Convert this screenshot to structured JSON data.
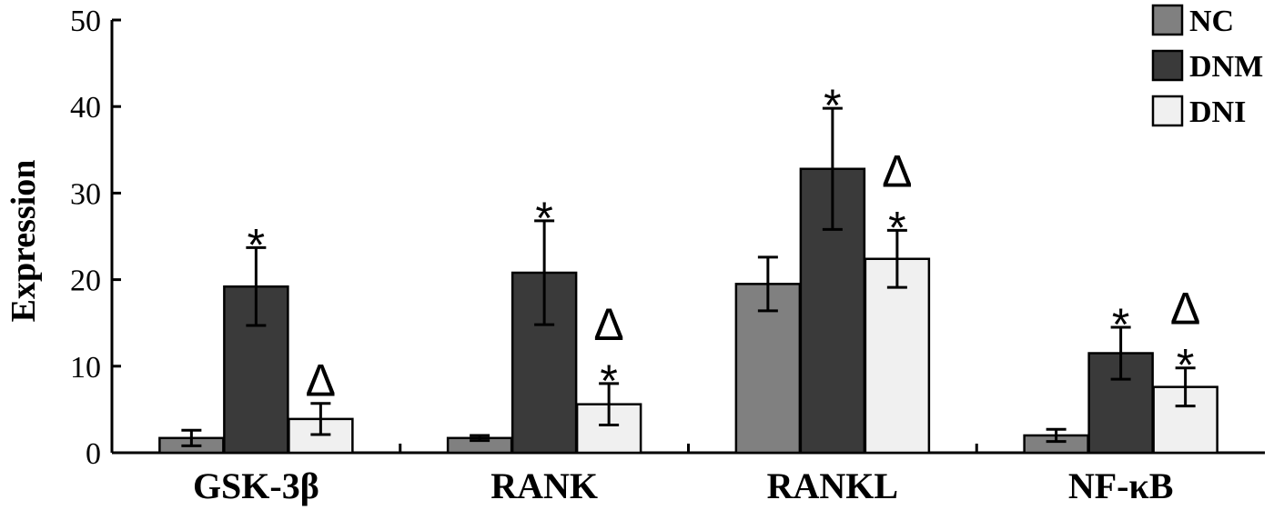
{
  "chart_data": {
    "type": "bar",
    "title": "",
    "xlabel": "",
    "ylabel": "Expression",
    "ylim": [
      0,
      50
    ],
    "yticks": [
      0,
      10,
      20,
      30,
      40,
      50
    ],
    "categories": [
      "GSK-3β",
      "RANK",
      "RANKL",
      "NF-κB"
    ],
    "legend_position": "top-right",
    "series": [
      {
        "name": "NC",
        "color": "#808080",
        "values": [
          1.7,
          1.7,
          19.5,
          2.0
        ],
        "errors": [
          0.9,
          0.3,
          3.1,
          0.7
        ],
        "marks": [
          "",
          "",
          "",
          ""
        ]
      },
      {
        "name": "DNM",
        "color": "#3a3a3a",
        "values": [
          19.2,
          20.8,
          32.8,
          11.5
        ],
        "errors": [
          4.5,
          6.0,
          7.0,
          3.0
        ],
        "marks": [
          "*",
          "*",
          "*",
          "*"
        ]
      },
      {
        "name": "DNI",
        "color": "#f0f0f0",
        "values": [
          3.9,
          5.6,
          22.4,
          7.6
        ],
        "errors": [
          1.8,
          2.4,
          3.3,
          2.2
        ],
        "marks": [
          "Δ",
          "Δ\n*",
          "Δ\n*",
          "Δ\n*"
        ]
      }
    ]
  }
}
